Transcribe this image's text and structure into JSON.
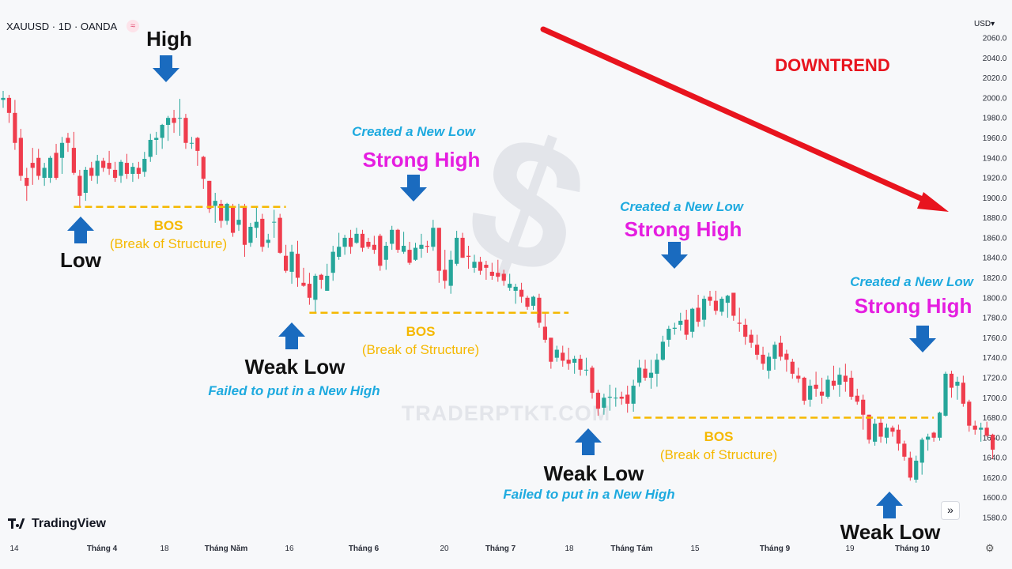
{
  "header": {
    "symbol_line": "XAUUSD · 1D · OANDA",
    "badge_icon": "≈",
    "currency": "USD"
  },
  "branding": {
    "logo_text": "TradingView",
    "watermark_text": "TRADERPTKT.COM"
  },
  "controls": {
    "expand_icon": "»",
    "settings_icon": "⚙"
  },
  "colors": {
    "bull": "#26a69a",
    "bear": "#ef3d4d",
    "arrow_blue": "#1a6bbf",
    "level": "#f5b800",
    "cyan": "#1eaadf",
    "magenta": "#e51ee0",
    "trend": "#e8141e"
  },
  "annotations": {
    "title": "DOWNTREND",
    "high": "High",
    "low": "Low",
    "bos": "BOS",
    "bos_sub": "(Break of Structure)",
    "weak_low": "Weak Low",
    "strong_high": "Strong High",
    "created_new_low": "Created a New Low",
    "failed_new_high": "Failed to put in a New High"
  },
  "chart_data": {
    "type": "candlestick",
    "title": "XAUUSD · 1D · OANDA",
    "y_unit": "USD",
    "ylim": [
      1568,
      2068
    ],
    "y_ticks": [
      2060,
      2040,
      2020,
      2000,
      1980,
      1960,
      1940,
      1920,
      1900,
      1880,
      1860,
      1840,
      1820,
      1800,
      1780,
      1760,
      1740,
      1720,
      1700,
      1680,
      1660,
      1640,
      1620,
      1600,
      1580
    ],
    "x_ticks": [
      "14",
      "Tháng 4",
      "18",
      "Tháng Năm",
      "16",
      "Tháng 6",
      "20",
      "Tháng 7",
      "18",
      "Tháng Tám",
      "15",
      "Tháng 9",
      "19",
      "Tháng 10"
    ],
    "levels": [
      {
        "label": "BOS",
        "value": 1891,
        "from_bar": 12,
        "to_bar": 48
      },
      {
        "label": "BOS",
        "value": 1785,
        "from_bar": 52,
        "to_bar": 96
      },
      {
        "label": "BOS",
        "value": 1680,
        "from_bar": 107,
        "to_bar": 158
      }
    ],
    "candles": [
      [
        1998,
        2007,
        1990,
        2000
      ],
      [
        2000,
        2003,
        1975,
        1985
      ],
      [
        1985,
        1998,
        1948,
        1955
      ],
      [
        1960,
        1969,
        1917,
        1922
      ],
      [
        1920,
        1930,
        1897,
        1912
      ],
      [
        1935,
        1950,
        1913,
        1930
      ],
      [
        1940,
        1949,
        1918,
        1922
      ],
      [
        1920,
        1935,
        1912,
        1930
      ],
      [
        1920,
        1942,
        1915,
        1940
      ],
      [
        1945,
        1954,
        1918,
        1920
      ],
      [
        1940,
        1961,
        1924,
        1955
      ],
      [
        1960,
        1965,
        1946,
        1955
      ],
      [
        1950,
        1966,
        1923,
        1925
      ],
      [
        1922,
        1928,
        1891,
        1902
      ],
      [
        1905,
        1931,
        1897,
        1928
      ],
      [
        1930,
        1936,
        1917,
        1922
      ],
      [
        1922,
        1943,
        1914,
        1937
      ],
      [
        1937,
        1940,
        1926,
        1930
      ],
      [
        1935,
        1947,
        1923,
        1929
      ],
      [
        1928,
        1936,
        1916,
        1920
      ],
      [
        1922,
        1938,
        1915,
        1936
      ],
      [
        1935,
        1944,
        1919,
        1924
      ],
      [
        1924,
        1935,
        1916,
        1931
      ],
      [
        1930,
        1936,
        1919,
        1924
      ],
      [
        1926,
        1946,
        1921,
        1939
      ],
      [
        1941,
        1964,
        1936,
        1958
      ],
      [
        1958,
        1966,
        1943,
        1960
      ],
      [
        1960,
        1974,
        1949,
        1973
      ],
      [
        1973,
        1982,
        1957,
        1980
      ],
      [
        1980,
        1988,
        1965,
        1975
      ],
      [
        1980,
        1999,
        1962,
        1980
      ],
      [
        1980,
        1984,
        1949,
        1955
      ],
      [
        1955,
        1961,
        1949,
        1955
      ],
      [
        1960,
        1961,
        1932,
        1947
      ],
      [
        1941,
        1942,
        1909,
        1919
      ],
      [
        1917,
        1917,
        1885,
        1889
      ],
      [
        1892,
        1905,
        1875,
        1897
      ],
      [
        1894,
        1898,
        1870,
        1877
      ],
      [
        1877,
        1895,
        1873,
        1894
      ],
      [
        1890,
        1894,
        1861,
        1865
      ],
      [
        1873,
        1894,
        1867,
        1878
      ],
      [
        1890,
        1894,
        1841,
        1853
      ],
      [
        1855,
        1875,
        1851,
        1871
      ],
      [
        1870,
        1891,
        1860,
        1876
      ],
      [
        1879,
        1884,
        1846,
        1851
      ],
      [
        1855,
        1864,
        1850,
        1858
      ],
      [
        1876,
        1888,
        1860,
        1876
      ],
      [
        1880,
        1884,
        1844,
        1845
      ],
      [
        1842,
        1853,
        1825,
        1827
      ],
      [
        1826,
        1853,
        1814,
        1846
      ],
      [
        1844,
        1857,
        1811,
        1820
      ],
      [
        1815,
        1830,
        1811,
        1812
      ],
      [
        1814,
        1825,
        1793,
        1800
      ],
      [
        1798,
        1824,
        1784,
        1822
      ],
      [
        1823,
        1824,
        1809,
        1818
      ],
      [
        1807,
        1834,
        1807,
        1822
      ],
      [
        1825,
        1852,
        1817,
        1846
      ],
      [
        1841,
        1865,
        1838,
        1851
      ],
      [
        1851,
        1863,
        1843,
        1860
      ],
      [
        1860,
        1868,
        1844,
        1851
      ],
      [
        1855,
        1870,
        1854,
        1864
      ],
      [
        1864,
        1868,
        1846,
        1850
      ],
      [
        1856,
        1860,
        1849,
        1851
      ],
      [
        1853,
        1862,
        1844,
        1848
      ],
      [
        1862,
        1864,
        1827,
        1832
      ],
      [
        1838,
        1856,
        1828,
        1852
      ],
      [
        1854,
        1872,
        1848,
        1868
      ],
      [
        1868,
        1869,
        1845,
        1848
      ],
      [
        1846,
        1866,
        1844,
        1852
      ],
      [
        1848,
        1856,
        1833,
        1835
      ],
      [
        1838,
        1855,
        1837,
        1850
      ],
      [
        1849,
        1864,
        1840,
        1853
      ],
      [
        1852,
        1857,
        1845,
        1851
      ],
      [
        1851,
        1878,
        1847,
        1870
      ],
      [
        1870,
        1870,
        1815,
        1827
      ],
      [
        1828,
        1848,
        1809,
        1817
      ],
      [
        1812,
        1847,
        1804,
        1838
      ],
      [
        1834,
        1867,
        1832,
        1860
      ],
      [
        1860,
        1865,
        1840,
        1840
      ],
      [
        1842,
        1852,
        1829,
        1841
      ],
      [
        1830,
        1843,
        1825,
        1836
      ],
      [
        1836,
        1841,
        1823,
        1827
      ],
      [
        1833,
        1837,
        1818,
        1830
      ],
      [
        1826,
        1835,
        1818,
        1822
      ],
      [
        1825,
        1838,
        1816,
        1821
      ],
      [
        1824,
        1828,
        1812,
        1817
      ],
      [
        1810,
        1824,
        1807,
        1814
      ],
      [
        1807,
        1814,
        1794,
        1811
      ],
      [
        1808,
        1815,
        1795,
        1801
      ],
      [
        1800,
        1802,
        1788,
        1791
      ],
      [
        1792,
        1802,
        1788,
        1801
      ],
      [
        1800,
        1804,
        1770,
        1775
      ],
      [
        1771,
        1786,
        1755,
        1758
      ],
      [
        1760,
        1760,
        1729,
        1736
      ],
      [
        1740,
        1752,
        1736,
        1748
      ],
      [
        1745,
        1752,
        1731,
        1737
      ],
      [
        1738,
        1750,
        1728,
        1734
      ],
      [
        1735,
        1742,
        1724,
        1739
      ],
      [
        1739,
        1743,
        1722,
        1728
      ],
      [
        1728,
        1740,
        1722,
        1728
      ],
      [
        1730,
        1732,
        1699,
        1705
      ],
      [
        1705,
        1708,
        1682,
        1689
      ],
      [
        1690,
        1704,
        1683,
        1700
      ],
      [
        1700,
        1713,
        1687,
        1701
      ],
      [
        1700,
        1710,
        1691,
        1700
      ],
      [
        1701,
        1706,
        1693,
        1699
      ],
      [
        1703,
        1712,
        1685,
        1694
      ],
      [
        1694,
        1718,
        1686,
        1712
      ],
      [
        1715,
        1738,
        1711,
        1730
      ],
      [
        1729,
        1738,
        1717,
        1720
      ],
      [
        1720,
        1738,
        1709,
        1725
      ],
      [
        1724,
        1744,
        1711,
        1738
      ],
      [
        1738,
        1762,
        1737,
        1756
      ],
      [
        1758,
        1772,
        1751,
        1769
      ],
      [
        1769,
        1775,
        1763,
        1770
      ],
      [
        1773,
        1785,
        1767,
        1777
      ],
      [
        1778,
        1788,
        1758,
        1763
      ],
      [
        1766,
        1790,
        1760,
        1789
      ],
      [
        1790,
        1803,
        1771,
        1776
      ],
      [
        1778,
        1802,
        1771,
        1799
      ],
      [
        1801,
        1807,
        1792,
        1797
      ],
      [
        1797,
        1807,
        1783,
        1787
      ],
      [
        1786,
        1801,
        1782,
        1799
      ],
      [
        1795,
        1803,
        1780,
        1802
      ],
      [
        1805,
        1805,
        1777,
        1782
      ],
      [
        1775,
        1790,
        1766,
        1774
      ],
      [
        1773,
        1779,
        1753,
        1761
      ],
      [
        1763,
        1768,
        1750,
        1755
      ],
      [
        1753,
        1763,
        1738,
        1743
      ],
      [
        1743,
        1751,
        1728,
        1734
      ],
      [
        1727,
        1745,
        1719,
        1741
      ],
      [
        1739,
        1756,
        1728,
        1753
      ],
      [
        1755,
        1762,
        1737,
        1741
      ],
      [
        1744,
        1748,
        1726,
        1738
      ],
      [
        1736,
        1739,
        1719,
        1724
      ],
      [
        1722,
        1730,
        1715,
        1719
      ],
      [
        1720,
        1721,
        1693,
        1697
      ],
      [
        1698,
        1718,
        1691,
        1712
      ],
      [
        1713,
        1726,
        1701,
        1709
      ],
      [
        1706,
        1720,
        1694,
        1702
      ],
      [
        1701,
        1722,
        1699,
        1718
      ],
      [
        1717,
        1732,
        1708,
        1712
      ],
      [
        1713,
        1730,
        1701,
        1723
      ],
      [
        1722,
        1734,
        1706,
        1716
      ],
      [
        1720,
        1727,
        1698,
        1701
      ],
      [
        1702,
        1709,
        1693,
        1696
      ],
      [
        1698,
        1703,
        1668,
        1683
      ],
      [
        1683,
        1683,
        1654,
        1658
      ],
      [
        1656,
        1679,
        1652,
        1674
      ],
      [
        1675,
        1680,
        1655,
        1661
      ],
      [
        1660,
        1674,
        1654,
        1670
      ],
      [
        1670,
        1672,
        1661,
        1666
      ],
      [
        1668,
        1673,
        1647,
        1654
      ],
      [
        1654,
        1657,
        1637,
        1641
      ],
      [
        1640,
        1646,
        1617,
        1620
      ],
      [
        1618,
        1642,
        1615,
        1637
      ],
      [
        1635,
        1660,
        1623,
        1658
      ],
      [
        1658,
        1664,
        1647,
        1661
      ],
      [
        1665,
        1666,
        1656,
        1660
      ],
      [
        1660,
        1686,
        1657,
        1685
      ],
      [
        1682,
        1726,
        1681,
        1724
      ],
      [
        1724,
        1727,
        1700,
        1710
      ],
      [
        1712,
        1721,
        1698,
        1716
      ],
      [
        1715,
        1722,
        1691,
        1694
      ],
      [
        1696,
        1698,
        1666,
        1672
      ],
      [
        1672,
        1677,
        1663,
        1668
      ],
      [
        1668,
        1675,
        1656,
        1670
      ],
      [
        1670,
        1676,
        1661,
        1662
      ],
      [
        1663,
        1664,
        1639,
        1648
      ]
    ]
  }
}
